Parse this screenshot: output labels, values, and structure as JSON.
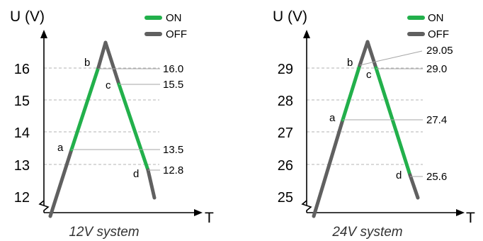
{
  "colors": {
    "on": "#22b04b",
    "off": "#606060",
    "axis": "#000000",
    "grid": "#b3b3b3",
    "leader": "#a6a6a6"
  },
  "legend": {
    "on": "ON",
    "off": "OFF"
  },
  "panels": [
    {
      "id": "12v",
      "ylabel": "U (V)",
      "xlabel": "T",
      "caption": "12V system",
      "yticks": [
        "12",
        "13",
        "14",
        "15",
        "16"
      ],
      "points": {
        "a": "a",
        "b": "b",
        "c": "c",
        "d": "d"
      },
      "values": [
        "16.0",
        "15.5",
        "13.5",
        "12.8"
      ]
    },
    {
      "id": "24v",
      "ylabel": "U (V)",
      "xlabel": "T",
      "caption": "24V system",
      "yticks": [
        "25",
        "26",
        "27",
        "28",
        "29"
      ],
      "points": {
        "a": "a",
        "b": "b",
        "c": "c",
        "d": "d"
      },
      "values": [
        "29.05",
        "29.0",
        "27.4",
        "25.6"
      ]
    }
  ]
}
